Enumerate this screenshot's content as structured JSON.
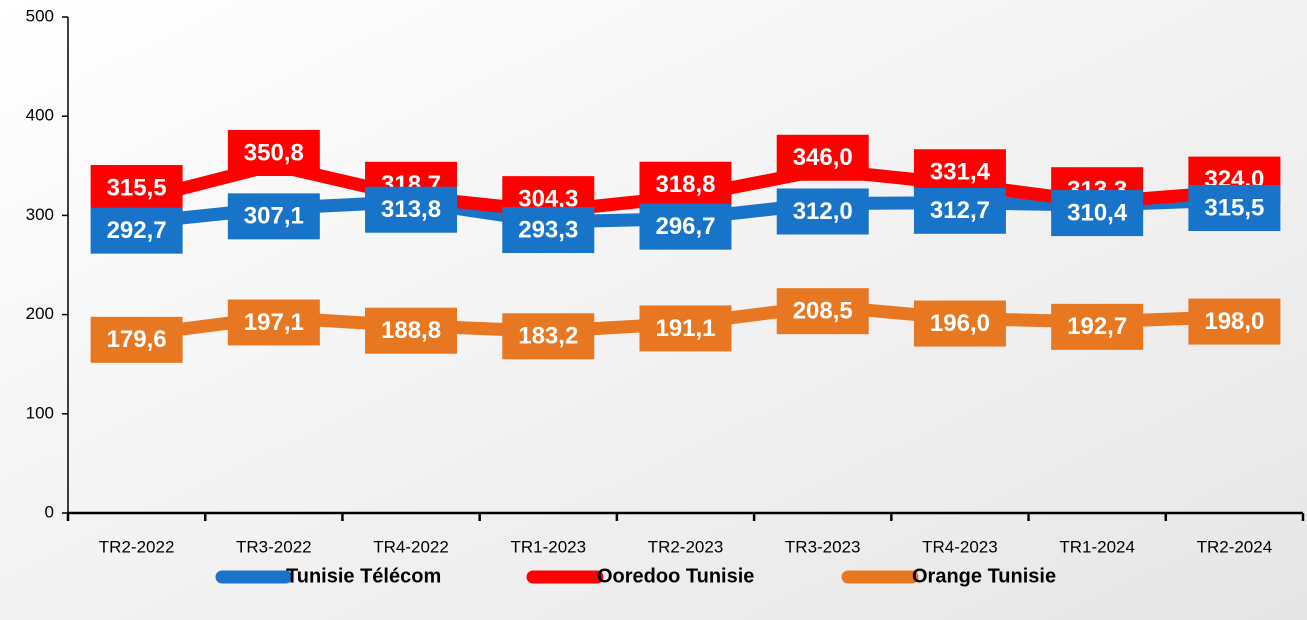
{
  "chart_data": {
    "type": "line",
    "categories": [
      "TR2-2022",
      "TR3-2022",
      "TR4-2022",
      "TR1-2023",
      "TR2-2023",
      "TR3-2023",
      "TR4-2023",
      "TR1-2024",
      "TR2-2024"
    ],
    "series": [
      {
        "name": "Tunisie Télécom",
        "color": "#1874c8",
        "values": [
          292.7,
          307.1,
          313.8,
          293.3,
          296.7,
          312.0,
          312.7,
          310.4,
          315.5
        ],
        "value_labels": [
          "292,7",
          "307,1",
          "313,8",
          "293,3",
          "296,7",
          "312,0",
          "312,7",
          "310,4",
          "315,5"
        ]
      },
      {
        "name": "Ooredoo Tunisie",
        "color": "#ff0000",
        "values": [
          315.5,
          350.8,
          318.7,
          304.3,
          318.8,
          346.0,
          331.4,
          313.3,
          324.0
        ],
        "value_labels": [
          "315,5",
          "350,8",
          "318,7",
          "304,3",
          "318,8",
          "346,0",
          "331,4",
          "313,3",
          "324,0"
        ]
      },
      {
        "name": "Orange Tunisie",
        "color": "#e87722",
        "values": [
          179.6,
          197.1,
          188.8,
          183.2,
          191.1,
          208.5,
          196.0,
          192.7,
          198.0
        ],
        "value_labels": [
          "179,6",
          "197,1",
          "188,8",
          "183,2",
          "191,1",
          "208,5",
          "196,0",
          "192,7",
          "198,0"
        ]
      }
    ],
    "ylim": [
      0,
      500
    ],
    "yticks": [
      0,
      100,
      200,
      300,
      400,
      500
    ],
    "legend": "bottom"
  }
}
